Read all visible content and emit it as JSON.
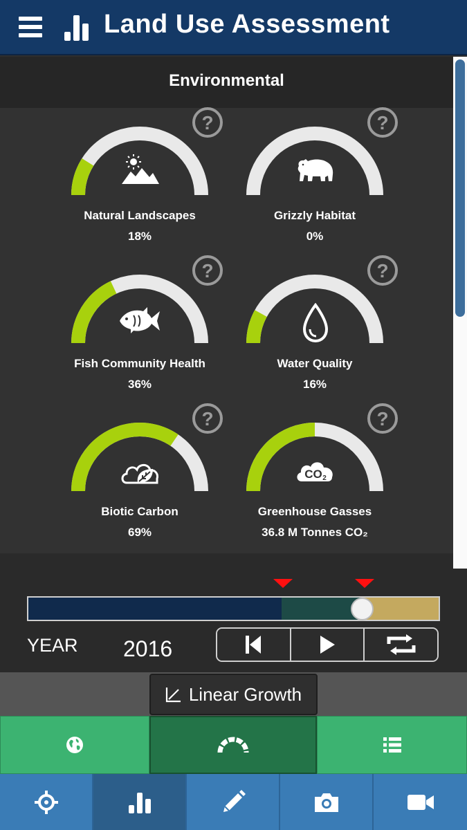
{
  "header": {
    "title": "Land Use Assessment",
    "menu_icon": "hamburger-icon",
    "logo_icon": "bar-chart-icon"
  },
  "section": {
    "title": "Environmental"
  },
  "indicators": [
    {
      "name": "Natural Landscapes",
      "value": "18%",
      "fraction": 0.18,
      "icon": "mountains-sun-icon"
    },
    {
      "name": "Grizzly Habitat",
      "value": "0%",
      "fraction": 0.0,
      "icon": "bear-icon"
    },
    {
      "name": "Fish Community Health",
      "value": "36%",
      "fraction": 0.36,
      "icon": "fish-icon"
    },
    {
      "name": "Water Quality",
      "value": "16%",
      "fraction": 0.16,
      "icon": "water-drop-icon"
    },
    {
      "name": "Biotic Carbon",
      "value": "69%",
      "fraction": 0.69,
      "icon": "leaf-cloud-icon"
    },
    {
      "name": "Greenhouse Gasses",
      "value": "36.8 M Tonnes CO₂",
      "fraction": 0.5,
      "icon": "co2-cloud-icon"
    }
  ],
  "help_symbol": "?",
  "timeline": {
    "year_label": "YEAR",
    "year_value": "2016",
    "knob_fraction": 0.813,
    "segments": [
      {
        "to": 0.617,
        "color": "#102a4c"
      },
      {
        "to": 0.813,
        "color": "#1d4a46"
      },
      {
        "to": 1.0,
        "color": "#c4a95f"
      }
    ],
    "markers": [
      0.62,
      0.82
    ],
    "controls": [
      "skip-back-icon",
      "play-icon",
      "repeat-icon"
    ]
  },
  "scenario": {
    "label": "Linear Growth",
    "icon": "linear-graph-icon"
  },
  "green_tabs": [
    {
      "icon": "globe-icon",
      "active": false
    },
    {
      "icon": "gauge-icon",
      "active": true
    },
    {
      "icon": "list-icon",
      "active": false
    }
  ],
  "nav": [
    {
      "icon": "crosshair-icon",
      "active": false
    },
    {
      "icon": "bar-chart-icon",
      "active": true
    },
    {
      "icon": "pencil-icon",
      "active": false
    },
    {
      "icon": "camera-icon",
      "active": false
    },
    {
      "icon": "video-camera-icon",
      "active": false
    }
  ],
  "colors": {
    "header": "#143966",
    "gauge_fill": "#a8d10d",
    "gauge_track": "#e9e9e9",
    "green_tab": "#3cb371",
    "green_tab_active": "#237448",
    "nav": "#3a7cb6",
    "nav_active": "#2c5e8a"
  }
}
